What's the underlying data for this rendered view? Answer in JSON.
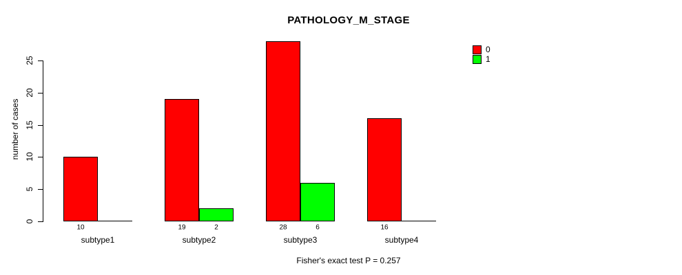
{
  "chart_data": {
    "type": "bar",
    "title": "PATHOLOGY_M_STAGE",
    "categories": [
      "subtype1",
      "subtype2",
      "subtype3",
      "subtype4"
    ],
    "series": [
      {
        "name": "0",
        "color": "#ff0000",
        "values": [
          10,
          19,
          28,
          16
        ]
      },
      {
        "name": "1",
        "color": "#00ff00",
        "values": [
          0,
          2,
          6,
          0
        ]
      }
    ],
    "xlabel": "",
    "ylabel": "number of cases",
    "yticks": [
      0,
      5,
      10,
      15,
      20,
      25
    ],
    "ylim": [
      0,
      28
    ],
    "grid": false,
    "legend_position": "top-right",
    "bar_value_labels_shown": true,
    "annotation": "Fisher's exact test P = 0.257",
    "axis_color": "#000000",
    "bar_border_color": "#000000"
  }
}
